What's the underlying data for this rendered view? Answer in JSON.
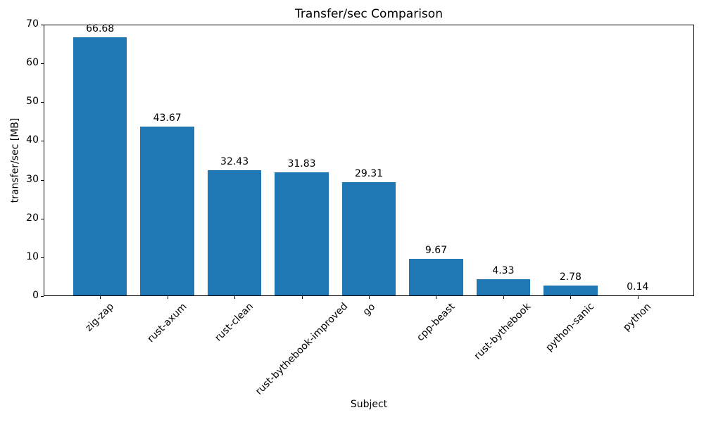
{
  "chart_data": {
    "type": "bar",
    "title": "Transfer/sec Comparison",
    "xlabel": "Subject",
    "ylabel": "transfer/sec [MB]",
    "categories": [
      "zig-zap",
      "rust-axum",
      "rust-clean",
      "rust-bythebook-improved",
      "go",
      "cpp-beast",
      "rust-bythebook",
      "python-sanic",
      "python"
    ],
    "values": [
      66.68,
      43.67,
      32.43,
      31.83,
      29.31,
      9.67,
      4.33,
      2.78,
      0.14
    ],
    "value_labels": [
      "66.68",
      "43.67",
      "32.43",
      "31.83",
      "29.31",
      "9.67",
      "4.33",
      "2.78",
      "0.14"
    ],
    "ylim": [
      0,
      70
    ],
    "yticks": [
      0,
      10,
      20,
      30,
      40,
      50,
      60,
      70
    ],
    "x_tick_rotation": 45,
    "bar_color": "#1f77b4",
    "text_color": "#000000",
    "background_color": "#ffffff",
    "grid": "off",
    "legend": "none"
  }
}
